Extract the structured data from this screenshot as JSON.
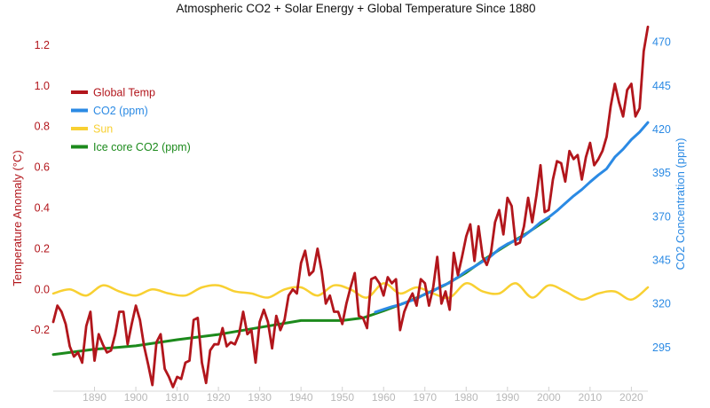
{
  "chart_data": {
    "type": "line",
    "title": "Atmospheric CO2 + Solar Energy + Global Temperature Since 1880",
    "ylabel_left": "Temperature Anomaly (°C)",
    "ylabel_right": "CO2 Concentration (ppm)",
    "xlim": [
      1880,
      2024
    ],
    "ylim_left": [
      -0.5,
      1.3
    ],
    "ylim_right": [
      270,
      480
    ],
    "x_ticks": [
      1890,
      1900,
      1910,
      1920,
      1930,
      1940,
      1950,
      1960,
      1970,
      1980,
      1990,
      2000,
      2010,
      2020
    ],
    "y_ticks_left": [
      "-0.2",
      "0.0",
      "0.2",
      "0.4",
      "0.6",
      "0.8",
      "1.0",
      "1.2"
    ],
    "y_ticks_right": [
      "295",
      "320",
      "345",
      "370",
      "395",
      "420",
      "445",
      "470"
    ],
    "grid": false,
    "legend_position": "top-left",
    "colors": {
      "temp": "#b2161c",
      "co2": "#2b8ae4",
      "sun": "#f8d032",
      "ice": "#1c8a1c",
      "left_axis": "#b2161c",
      "right_axis": "#2b8ae4",
      "x_ticks": "#b8b8b8"
    },
    "series": [
      {
        "name": "Global Temp",
        "axis": "left",
        "x": [
          1880,
          1881,
          1882,
          1883,
          1884,
          1885,
          1886,
          1887,
          1888,
          1889,
          1890,
          1891,
          1892,
          1893,
          1894,
          1895,
          1896,
          1897,
          1898,
          1899,
          1900,
          1901,
          1902,
          1903,
          1904,
          1905,
          1906,
          1907,
          1908,
          1909,
          1910,
          1911,
          1912,
          1913,
          1914,
          1915,
          1916,
          1917,
          1918,
          1919,
          1920,
          1921,
          1922,
          1923,
          1924,
          1925,
          1926,
          1927,
          1928,
          1929,
          1930,
          1931,
          1932,
          1933,
          1934,
          1935,
          1936,
          1937,
          1938,
          1939,
          1940,
          1941,
          1942,
          1943,
          1944,
          1945,
          1946,
          1947,
          1948,
          1949,
          1950,
          1951,
          1952,
          1953,
          1954,
          1955,
          1956,
          1957,
          1958,
          1959,
          1960,
          1961,
          1962,
          1963,
          1964,
          1965,
          1966,
          1967,
          1968,
          1969,
          1970,
          1971,
          1972,
          1973,
          1974,
          1975,
          1976,
          1977,
          1978,
          1979,
          1980,
          1981,
          1982,
          1983,
          1984,
          1985,
          1986,
          1987,
          1988,
          1989,
          1990,
          1991,
          1992,
          1993,
          1994,
          1995,
          1996,
          1997,
          1998,
          1999,
          2000,
          2001,
          2002,
          2003,
          2004,
          2005,
          2006,
          2007,
          2008,
          2009,
          2010,
          2011,
          2012,
          2013,
          2014,
          2015,
          2016,
          2017,
          2018,
          2019,
          2020,
          2021,
          2022,
          2023,
          2024
        ],
        "values": [
          -0.16,
          -0.08,
          -0.11,
          -0.17,
          -0.28,
          -0.33,
          -0.31,
          -0.36,
          -0.18,
          -0.11,
          -0.35,
          -0.22,
          -0.27,
          -0.31,
          -0.3,
          -0.22,
          -0.11,
          -0.11,
          -0.27,
          -0.17,
          -0.08,
          -0.15,
          -0.28,
          -0.37,
          -0.47,
          -0.26,
          -0.22,
          -0.39,
          -0.43,
          -0.48,
          -0.43,
          -0.44,
          -0.36,
          -0.35,
          -0.15,
          -0.14,
          -0.36,
          -0.46,
          -0.3,
          -0.27,
          -0.27,
          -0.19,
          -0.28,
          -0.26,
          -0.27,
          -0.22,
          -0.11,
          -0.22,
          -0.2,
          -0.36,
          -0.16,
          -0.1,
          -0.16,
          -0.29,
          -0.13,
          -0.2,
          -0.15,
          -0.03,
          0.0,
          -0.02,
          0.13,
          0.19,
          0.07,
          0.09,
          0.2,
          0.09,
          -0.07,
          -0.03,
          -0.11,
          -0.11,
          -0.17,
          -0.07,
          0.01,
          0.08,
          -0.13,
          -0.14,
          -0.19,
          0.05,
          0.06,
          0.03,
          -0.03,
          0.06,
          0.03,
          0.05,
          -0.2,
          -0.11,
          -0.06,
          -0.02,
          -0.08,
          0.05,
          0.03,
          -0.08,
          0.01,
          0.16,
          -0.07,
          -0.01,
          -0.1,
          0.18,
          0.07,
          0.16,
          0.26,
          0.32,
          0.14,
          0.31,
          0.16,
          0.12,
          0.18,
          0.33,
          0.39,
          0.27,
          0.45,
          0.41,
          0.22,
          0.23,
          0.31,
          0.45,
          0.33,
          0.46,
          0.61,
          0.38,
          0.39,
          0.54,
          0.63,
          0.62,
          0.53,
          0.68,
          0.64,
          0.66,
          0.54,
          0.65,
          0.72,
          0.61,
          0.64,
          0.68,
          0.75,
          0.9,
          1.01,
          0.92,
          0.85,
          0.98,
          1.01,
          0.85,
          0.89,
          1.17,
          1.29
        ]
      },
      {
        "name": "CO2 (ppm)",
        "axis": "right",
        "x": [
          1958,
          1960,
          1962,
          1964,
          1966,
          1968,
          1970,
          1972,
          1974,
          1976,
          1978,
          1980,
          1982,
          1984,
          1986,
          1988,
          1990,
          1992,
          1994,
          1996,
          1998,
          2000,
          2002,
          2004,
          2006,
          2008,
          2010,
          2012,
          2014,
          2016,
          2018,
          2020,
          2022,
          2024
        ],
        "values": [
          315.3,
          316.9,
          318.4,
          319.6,
          321.4,
          323.0,
          325.7,
          327.4,
          330.2,
          332.2,
          335.4,
          338.8,
          341.4,
          344.4,
          347.4,
          351.5,
          354.4,
          356.5,
          359.0,
          362.7,
          366.8,
          369.7,
          373.4,
          377.7,
          381.9,
          385.6,
          389.9,
          393.9,
          397.5,
          404.2,
          408.7,
          414.2,
          418.5,
          424.0
        ]
      },
      {
        "name": "Sun",
        "axis": "left",
        "x": [
          1880,
          1884,
          1888,
          1892,
          1896,
          1900,
          1904,
          1908,
          1912,
          1916,
          1920,
          1924,
          1928,
          1932,
          1936,
          1940,
          1944,
          1948,
          1952,
          1956,
          1960,
          1964,
          1968,
          1972,
          1976,
          1980,
          1984,
          1988,
          1992,
          1996,
          2000,
          2004,
          2008,
          2012,
          2016,
          2020,
          2024
        ],
        "values": [
          -0.02,
          0.0,
          -0.03,
          0.02,
          -0.01,
          -0.03,
          0.0,
          -0.02,
          -0.03,
          0.01,
          0.02,
          -0.01,
          -0.02,
          -0.04,
          0.0,
          0.01,
          -0.03,
          0.02,
          0.0,
          -0.04,
          0.03,
          -0.02,
          0.01,
          -0.02,
          -0.04,
          0.03,
          -0.01,
          -0.02,
          0.03,
          -0.04,
          0.02,
          -0.01,
          -0.05,
          -0.02,
          -0.01,
          -0.05,
          0.01
        ]
      },
      {
        "name": "Ice core CO2 (ppm)",
        "axis": "right",
        "x": [
          1880,
          1890,
          1900,
          1910,
          1920,
          1930,
          1940,
          1950,
          1955,
          1960,
          1965,
          1970,
          1975,
          1980,
          1985,
          1990,
          1995,
          2000
        ],
        "values": [
          291.0,
          294.0,
          296.0,
          299.5,
          302.5,
          306.5,
          310.5,
          310.5,
          312.0,
          316.0,
          320.5,
          325.5,
          331.0,
          338.0,
          346.5,
          354.0,
          361.0,
          369.0
        ]
      }
    ]
  }
}
